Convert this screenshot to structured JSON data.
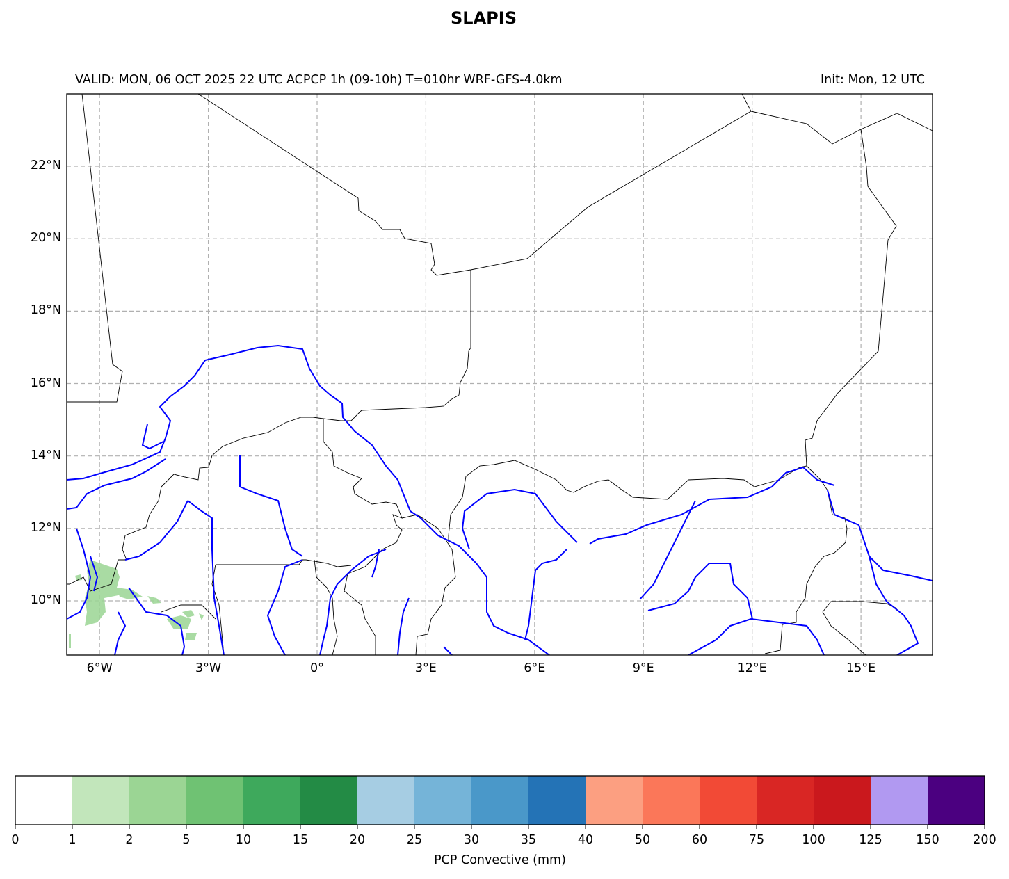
{
  "title": "SLAPIS",
  "subtitle_left": "VALID: MON, 06 OCT 2025 22 UTC   ACPCP 1h (09-10h) T=010hr WRF-GFS-4.0km",
  "subtitle_right": "Init: Mon, 12 UTC",
  "map": {
    "lon_ticks": [
      {
        "value": -6,
        "label": "6°W"
      },
      {
        "value": -3,
        "label": "3°W"
      },
      {
        "value": 0,
        "label": "0°"
      },
      {
        "value": 3,
        "label": "3°E"
      },
      {
        "value": 6,
        "label": "6°E"
      },
      {
        "value": 9,
        "label": "9°E"
      },
      {
        "value": 12,
        "label": "12°E"
      },
      {
        "value": 15,
        "label": "15°E"
      }
    ],
    "lat_ticks": [
      {
        "value": 22,
        "label": "22°N"
      },
      {
        "value": 20,
        "label": "20°N"
      },
      {
        "value": 18,
        "label": "18°N"
      },
      {
        "value": 16,
        "label": "16°N"
      },
      {
        "value": 14,
        "label": "14°N"
      },
      {
        "value": 12,
        "label": "12°N"
      },
      {
        "value": 10,
        "label": "10°N"
      }
    ],
    "border_color": "#000000",
    "river_color": "#0000ff",
    "precip_color": "#9bd594"
  },
  "colorbar": {
    "label": "PCP Convective (mm)",
    "bounds": [
      "0",
      "1",
      "2",
      "5",
      "10",
      "15",
      "20",
      "25",
      "30",
      "35",
      "40",
      "50",
      "60",
      "75",
      "100",
      "125",
      "150",
      "200"
    ],
    "colors": [
      "#ffffff",
      "#c2e6bb",
      "#9bd594",
      "#6fc273",
      "#3ea95c",
      "#238b45",
      "#a6cde3",
      "#75b4d8",
      "#4a98c9",
      "#2473b6",
      "#fc9f81",
      "#fb7759",
      "#f24a36",
      "#d92624",
      "#ca181d",
      "#b199f1",
      "#4b0080"
    ]
  }
}
